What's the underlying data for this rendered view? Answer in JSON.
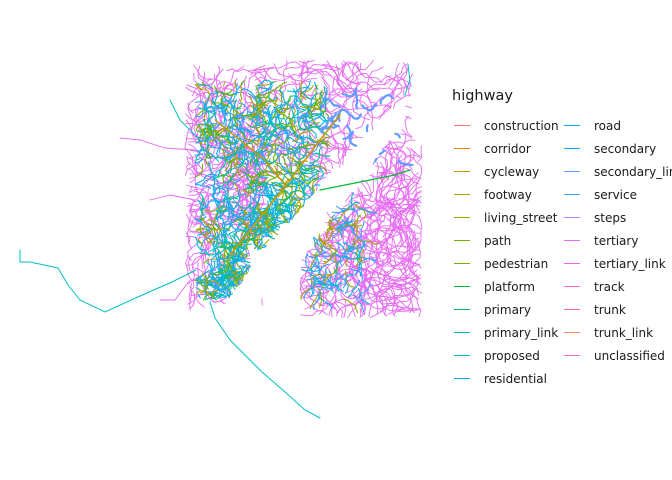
{
  "map": {
    "type": "road-network",
    "water_color": "#ffffff",
    "background": "#ffffff"
  },
  "legend": {
    "title": "highway",
    "placement": "right",
    "columns": 2,
    "items": [
      {
        "label": "construction",
        "color": "#F8766D"
      },
      {
        "label": "corridor",
        "color": "#E58700"
      },
      {
        "label": "cycleway",
        "color": "#C99800"
      },
      {
        "label": "footway",
        "color": "#A3A500"
      },
      {
        "label": "living_street",
        "color": "#9DA700"
      },
      {
        "label": "path",
        "color": "#6BB100"
      },
      {
        "label": "pedestrian",
        "color": "#7CAE00"
      },
      {
        "label": "platform",
        "color": "#00BA38"
      },
      {
        "label": "primary",
        "color": "#00BE67"
      },
      {
        "label": "primary_link",
        "color": "#00C19A"
      },
      {
        "label": "proposed",
        "color": "#00BFC4"
      },
      {
        "label": "residential",
        "color": "#00B9E3"
      },
      {
        "label": "road",
        "color": "#00ADFA"
      },
      {
        "label": "secondary",
        "color": "#00A9FF"
      },
      {
        "label": "secondary_link",
        "color": "#619CFF"
      },
      {
        "label": "service",
        "color": "#3E9FFF"
      },
      {
        "label": "steps",
        "color": "#B983FF"
      },
      {
        "label": "tertiary",
        "color": "#E76BF3"
      },
      {
        "label": "tertiary_link",
        "color": "#F564E3"
      },
      {
        "label": "track",
        "color": "#FD61D1"
      },
      {
        "label": "trunk",
        "color": "#FF67A4"
      },
      {
        "label": "trunk_link",
        "color": "#F98E6A"
      },
      {
        "label": "unclassified",
        "color": "#FF6C91"
      }
    ]
  }
}
